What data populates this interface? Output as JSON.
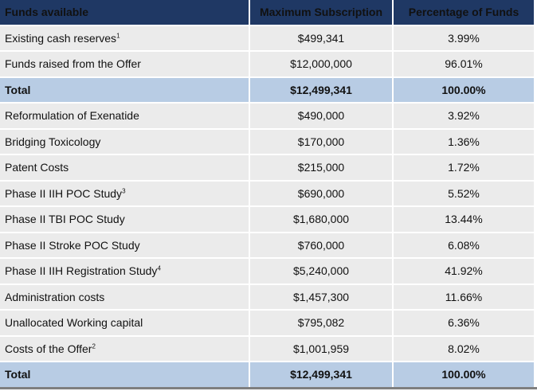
{
  "headers": {
    "col1": "Funds available",
    "col2": "Maximum Subscription",
    "col3": "Percentage of Funds"
  },
  "rows": [
    {
      "label": "Existing cash reserves",
      "note": "1",
      "amount": "$499,341",
      "pct": "3.99%",
      "total": false
    },
    {
      "label": "Funds raised from the Offer",
      "note": "",
      "amount": "$12,000,000",
      "pct": "96.01%",
      "total": false
    },
    {
      "label": "Total",
      "note": "",
      "amount": "$12,499,341",
      "pct": "100.00%",
      "total": true
    },
    {
      "label": "Reformulation of Exenatide",
      "note": "",
      "amount": "$490,000",
      "pct": "3.92%",
      "total": false
    },
    {
      "label": "Bridging Toxicology",
      "note": "",
      "amount": "$170,000",
      "pct": "1.36%",
      "total": false
    },
    {
      "label": "Patent Costs",
      "note": "",
      "amount": "$215,000",
      "pct": "1.72%",
      "total": false
    },
    {
      "label": "Phase II IIH POC Study",
      "note": "3",
      "amount": "$690,000",
      "pct": "5.52%",
      "total": false
    },
    {
      "label": "Phase II TBI POC Study",
      "note": "",
      "amount": "$1,680,000",
      "pct": "13.44%",
      "total": false
    },
    {
      "label": "Phase II Stroke POC Study",
      "note": "",
      "amount": "$760,000",
      "pct": "6.08%",
      "total": false
    },
    {
      "label": "Phase II IIH Registration Study",
      "note": "4",
      "amount": "$5,240,000",
      "pct": "41.92%",
      "total": false
    },
    {
      "label": "Administration costs",
      "note": "",
      "amount": "$1,457,300",
      "pct": "11.66%",
      "total": false
    },
    {
      "label": "Unallocated Working capital",
      "note": "",
      "amount": "$795,082",
      "pct": "6.36%",
      "total": false
    },
    {
      "label": "Costs of the Offer",
      "note": "2",
      "amount": "$1,001,959",
      "pct": "8.02%",
      "total": false
    },
    {
      "label": "Total",
      "note": "",
      "amount": "$12,499,341",
      "pct": "100.00%",
      "total": true
    }
  ]
}
